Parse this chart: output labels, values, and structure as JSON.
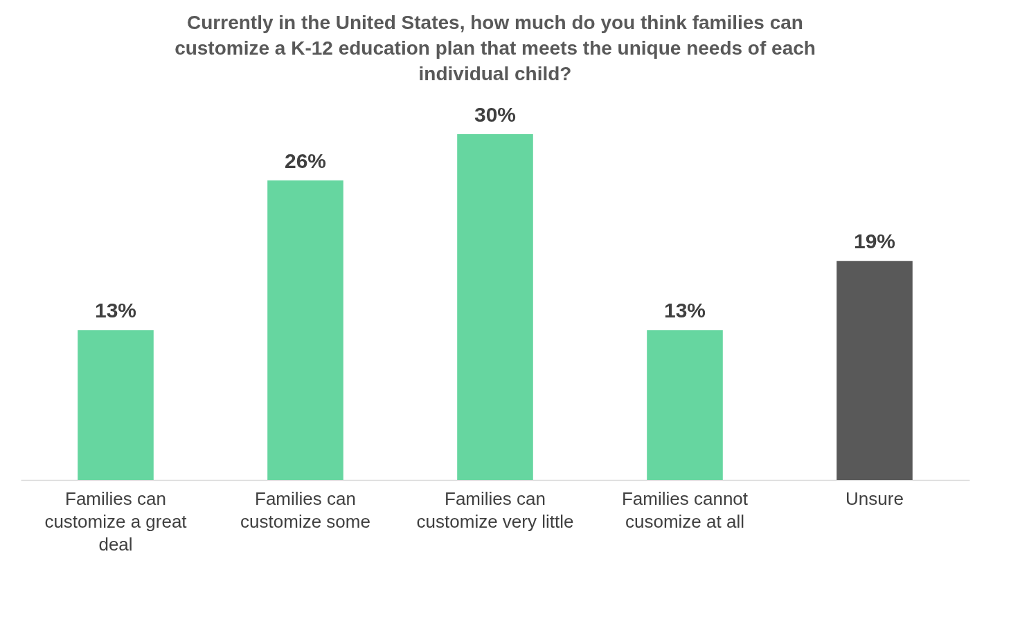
{
  "chart_data": {
    "type": "bar",
    "title": "Currently in the United States, how much do you think families can customize a K-12 education plan that meets the unique needs of each individual child?",
    "categories": [
      "Families can customize a great deal",
      "Families can customize some",
      "Families can customize very little",
      "Families cannot cusomize at all",
      "Unsure"
    ],
    "values": [
      13,
      26,
      30,
      13,
      19
    ],
    "colors": [
      "#66d6a0",
      "#66d6a0",
      "#66d6a0",
      "#66d6a0",
      "#595959"
    ],
    "value_labels": [
      "13%",
      "26%",
      "30%",
      "13%",
      "19%"
    ]
  }
}
